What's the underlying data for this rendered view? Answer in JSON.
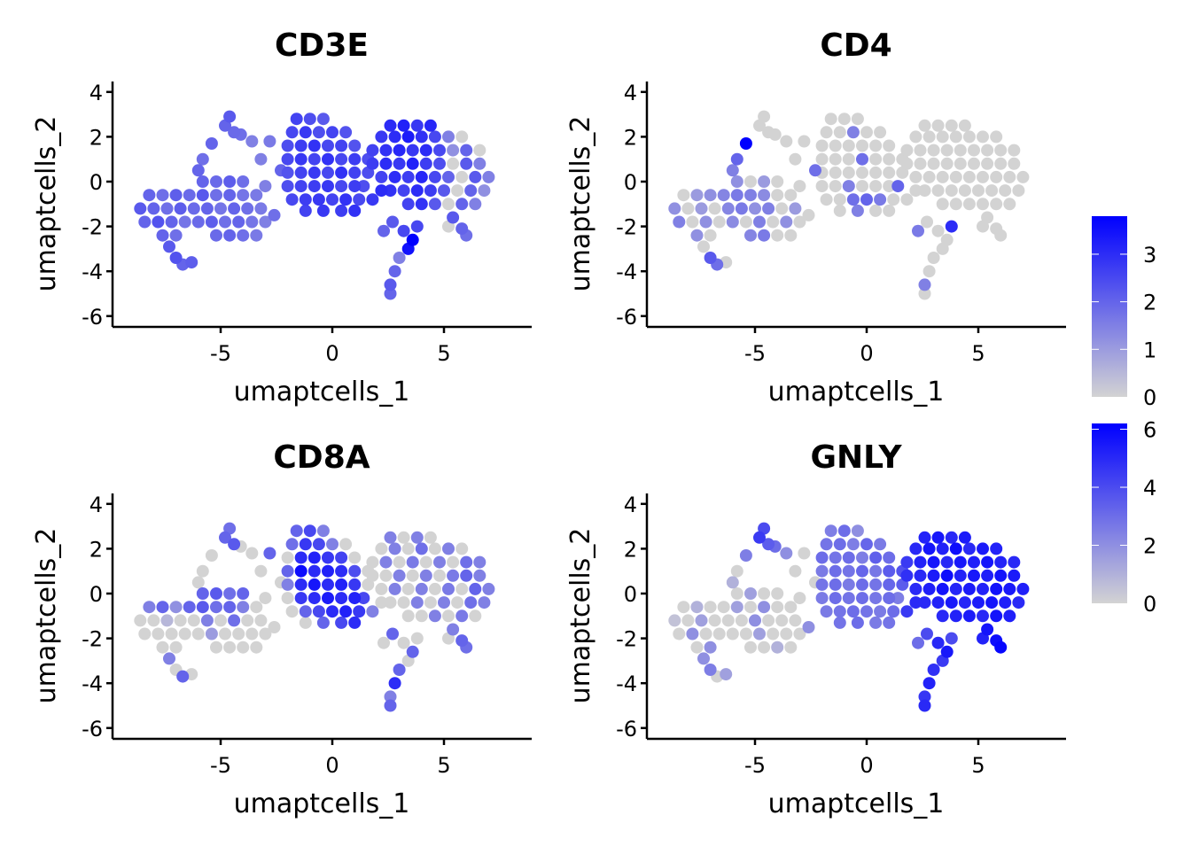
{
  "chart_data": {
    "type": "scatter",
    "xlabel": "umaptcells_1",
    "ylabel": "umaptcells_2",
    "xlim": [
      -9.8,
      8.9
    ],
    "ylim": [
      -6.5,
      4.5
    ],
    "xticks": [
      -5,
      0,
      5
    ],
    "yticks": [
      4,
      2,
      0,
      -2,
      -4,
      -6
    ],
    "grid": false,
    "color_low": "#D3D3D3",
    "color_high": "#0000FF",
    "point_columns": [
      "umaptcells_1",
      "umaptcells_2",
      "CD3E",
      "CD4",
      "CD8A",
      "GNLY"
    ],
    "panels": [
      {
        "title": "CD3E",
        "max": 3.8
      },
      {
        "title": "CD4",
        "max": 3.8
      },
      {
        "title": "CD8A",
        "max": 3.8
      },
      {
        "title": "GNLY",
        "max": 6.2
      }
    ],
    "legends": [
      {
        "ticks": [
          "0",
          "1",
          "2",
          "3"
        ],
        "tick_values": [
          0,
          1,
          2,
          3
        ],
        "max": 3.8,
        "placement": "right"
      },
      {
        "ticks": [
          "0",
          "2",
          "4",
          "6"
        ],
        "tick_values": [
          0,
          2,
          4,
          6
        ],
        "max": 6.2,
        "placement": "right"
      }
    ],
    "points": [
      [
        -8.6,
        -1.2,
        2.2,
        1.2,
        0,
        0.5
      ],
      [
        -8.0,
        -1.2,
        2.0,
        0,
        0,
        0
      ],
      [
        -7.4,
        -1.2,
        1.8,
        1.0,
        0.5,
        1.5
      ],
      [
        -6.8,
        -1.2,
        2.1,
        0,
        0,
        0
      ],
      [
        -6.2,
        -1.2,
        1.9,
        1.4,
        0,
        0
      ],
      [
        -5.6,
        -1.2,
        2.0,
        1.6,
        1.5,
        0
      ],
      [
        -5.0,
        -1.2,
        1.7,
        1.2,
        0,
        2.0
      ],
      [
        -4.4,
        -1.2,
        2.0,
        1.5,
        1.8,
        0
      ],
      [
        -3.8,
        -1.2,
        1.8,
        0,
        0,
        0
      ],
      [
        -3.2,
        -1.2,
        1.6,
        1.0,
        0,
        0
      ],
      [
        -8.4,
        -1.8,
        2.0,
        1.5,
        0,
        0
      ],
      [
        -7.8,
        -1.8,
        2.3,
        0,
        0,
        2.0
      ],
      [
        -7.2,
        -1.8,
        2.0,
        1.2,
        0,
        0
      ],
      [
        -6.6,
        -1.8,
        1.7,
        0,
        0,
        0
      ],
      [
        -6.0,
        -1.8,
        1.9,
        1.3,
        0,
        0
      ],
      [
        -5.4,
        -1.8,
        2.1,
        0,
        1.0,
        0
      ],
      [
        -4.8,
        -1.8,
        1.8,
        1.5,
        0,
        1.5
      ],
      [
        -4.2,
        -1.8,
        2.0,
        0,
        0,
        0
      ],
      [
        -3.6,
        -1.8,
        1.7,
        1.2,
        0,
        0
      ],
      [
        -3.0,
        -1.8,
        1.5,
        0,
        0,
        0
      ],
      [
        -8.2,
        -0.6,
        2.0,
        0,
        1.5,
        0
      ],
      [
        -7.6,
        -0.6,
        1.8,
        1.0,
        2.0,
        1.0
      ],
      [
        -7.0,
        -0.6,
        2.1,
        1.2,
        1.2,
        0
      ],
      [
        -6.4,
        -0.6,
        1.9,
        1.4,
        2.0,
        0
      ],
      [
        -5.8,
        -0.6,
        2.2,
        1.6,
        2.2,
        1.5
      ],
      [
        -5.2,
        -0.6,
        1.8,
        1.5,
        1.8,
        0
      ],
      [
        -4.6,
        -0.6,
        2.0,
        1.3,
        2.0,
        2.0
      ],
      [
        -4.0,
        -0.6,
        1.7,
        0,
        1.5,
        0
      ],
      [
        -3.4,
        -0.6,
        1.6,
        0,
        0,
        0
      ],
      [
        -7.6,
        -2.4,
        2.0,
        1.2,
        0,
        0
      ],
      [
        -7.0,
        -2.4,
        1.8,
        0,
        0,
        2.0
      ],
      [
        -5.2,
        -2.4,
        1.9,
        1.4,
        0,
        0
      ],
      [
        -4.6,
        -2.4,
        2.0,
        1.6,
        0,
        0
      ],
      [
        -4.0,
        -2.4,
        1.8,
        0,
        0,
        1.0
      ],
      [
        -3.4,
        -2.4,
        1.6,
        0,
        0,
        0
      ],
      [
        -5.8,
        0,
        2.0,
        1.2,
        2.0,
        0
      ],
      [
        -5.2,
        0,
        1.9,
        0,
        2.2,
        1.5
      ],
      [
        -4.6,
        0,
        2.1,
        1.0,
        1.8,
        0
      ],
      [
        -4.0,
        0,
        1.8,
        0,
        2.0,
        0
      ],
      [
        -7.3,
        -2.9,
        2.2,
        0,
        1.5,
        2.0
      ],
      [
        -7.0,
        -3.4,
        2.3,
        2.2,
        0,
        2.5
      ],
      [
        -6.7,
        -3.7,
        2.0,
        1.8,
        2.0,
        0
      ],
      [
        -6.3,
        -3.6,
        2.1,
        0,
        0,
        1.5
      ],
      [
        -4.8,
        2.5,
        2.0,
        0,
        2.0,
        4.5
      ],
      [
        -4.6,
        2.9,
        2.2,
        0,
        1.8,
        4.0
      ],
      [
        -4.4,
        2.2,
        1.9,
        0,
        2.2,
        3.5
      ],
      [
        -4.1,
        2.1,
        1.8,
        0,
        0,
        3.0
      ],
      [
        -3.6,
        1.8,
        1.5,
        0,
        0,
        2.0
      ],
      [
        -6.0,
        0.5,
        2.0,
        1.5,
        0,
        1.0
      ],
      [
        -5.8,
        1.0,
        1.8,
        2.0,
        0,
        0
      ],
      [
        -5.4,
        1.7,
        2.0,
        3.8,
        0,
        2.5
      ],
      [
        -3.2,
        1.0,
        1.5,
        0,
        0,
        0
      ],
      [
        -2.8,
        1.8,
        1.6,
        0,
        2.0,
        0
      ],
      [
        -3.0,
        -0.2,
        1.5,
        0,
        0,
        0
      ],
      [
        -2.6,
        -1.5,
        1.8,
        0,
        0,
        2.0
      ],
      [
        -2.3,
        0.5,
        2.0,
        1.8,
        0,
        0
      ],
      [
        -1.6,
        2.8,
        2.6,
        0,
        2.0,
        2.5
      ],
      [
        -1.0,
        2.8,
        2.4,
        0,
        2.5,
        3.0
      ],
      [
        -0.4,
        2.8,
        2.2,
        0,
        1.5,
        2.0
      ],
      [
        -1.8,
        2.2,
        2.5,
        0,
        1.8,
        2.8
      ],
      [
        -1.2,
        2.2,
        2.8,
        0,
        2.8,
        3.0
      ],
      [
        -0.6,
        2.2,
        2.4,
        1.5,
        2.5,
        2.5
      ],
      [
        0,
        2.2,
        2.6,
        0,
        1.5,
        3.2
      ],
      [
        0.6,
        2.2,
        2.3,
        0,
        0,
        2.6
      ],
      [
        -2.0,
        1.6,
        2.4,
        0,
        0,
        3.0
      ],
      [
        -1.4,
        1.6,
        2.7,
        0,
        3.0,
        2.8
      ],
      [
        -0.8,
        1.6,
        2.9,
        0,
        3.2,
        3.0
      ],
      [
        -0.2,
        1.6,
        2.5,
        0,
        2.8,
        2.5
      ],
      [
        0.4,
        1.6,
        2.6,
        0,
        2.6,
        3.4
      ],
      [
        1.0,
        1.6,
        2.3,
        0,
        0,
        3.0
      ],
      [
        -2.0,
        1.0,
        2.5,
        0,
        2.0,
        2.6
      ],
      [
        -1.4,
        1.0,
        2.8,
        0,
        3.6,
        3.0
      ],
      [
        -0.8,
        1.0,
        2.6,
        0,
        3.0,
        2.8
      ],
      [
        -0.2,
        1.0,
        2.9,
        1.8,
        3.2,
        3.2
      ],
      [
        0.4,
        1.0,
        2.5,
        0,
        3.0,
        2.7
      ],
      [
        1.0,
        1.0,
        2.7,
        0,
        2.4,
        3.5
      ],
      [
        1.6,
        1.0,
        2.4,
        0,
        0,
        3.8
      ],
      [
        -2.0,
        0.4,
        2.3,
        0,
        1.5,
        2.8
      ],
      [
        -1.4,
        0.4,
        2.6,
        0,
        3.0,
        3.0
      ],
      [
        -0.8,
        0.4,
        2.8,
        0,
        3.4,
        2.6
      ],
      [
        -0.2,
        0.4,
        2.5,
        0,
        3.0,
        3.0
      ],
      [
        0.4,
        0.4,
        2.9,
        0,
        3.2,
        2.8
      ],
      [
        1.0,
        0.4,
        2.6,
        0,
        2.8,
        3.2
      ],
      [
        1.6,
        0.4,
        2.4,
        0,
        0,
        3.5
      ],
      [
        -2.0,
        -0.2,
        2.4,
        0,
        0,
        2.6
      ],
      [
        -1.4,
        -0.2,
        2.6,
        0,
        2.8,
        3.0
      ],
      [
        -0.8,
        -0.2,
        2.7,
        1.5,
        3.0,
        2.8
      ],
      [
        -0.2,
        -0.2,
        2.8,
        0,
        3.3,
        3.0
      ],
      [
        0.4,
        -0.2,
        2.5,
        0,
        3.0,
        2.7
      ],
      [
        1.0,
        -0.2,
        2.7,
        0,
        3.2,
        3.0
      ],
      [
        1.4,
        -0.2,
        2.4,
        2.0,
        2.5,
        2.5
      ],
      [
        -1.8,
        -0.8,
        2.5,
        0,
        0,
        2.6
      ],
      [
        -1.2,
        -0.8,
        2.7,
        0,
        2.0,
        2.8
      ],
      [
        -0.6,
        -0.8,
        2.8,
        1.8,
        2.5,
        3.0
      ],
      [
        0,
        -0.8,
        2.6,
        2.0,
        3.0,
        2.8
      ],
      [
        0.6,
        -0.8,
        2.9,
        1.6,
        3.2,
        2.6
      ],
      [
        1.2,
        -0.8,
        2.5,
        0,
        2.8,
        3.0
      ],
      [
        -1.2,
        -1.3,
        2.6,
        0,
        0,
        2.8
      ],
      [
        -0.4,
        -1.3,
        2.8,
        1.5,
        2.0,
        3.0
      ],
      [
        0.4,
        -1.3,
        2.7,
        0,
        2.5,
        2.6
      ],
      [
        1.0,
        -1.3,
        2.9,
        0,
        3.0,
        2.8
      ],
      [
        2.6,
        2.5,
        3.0,
        0,
        1.5,
        5.2
      ],
      [
        3.2,
        2.5,
        3.2,
        0,
        0,
        5.5
      ],
      [
        3.8,
        2.5,
        2.8,
        0,
        1.5,
        5.0
      ],
      [
        4.4,
        2.5,
        3.1,
        0,
        0,
        5.4
      ],
      [
        2.2,
        2.0,
        2.8,
        0,
        0,
        5.0
      ],
      [
        2.8,
        2.0,
        3.0,
        0,
        1.5,
        5.6
      ],
      [
        3.4,
        2.0,
        3.3,
        0,
        0,
        5.2
      ],
      [
        4.0,
        2.0,
        2.9,
        0,
        1.8,
        5.8
      ],
      [
        4.6,
        2.0,
        2.5,
        0,
        0,
        5.0
      ],
      [
        5.2,
        2.0,
        1.5,
        0,
        1.5,
        5.4
      ],
      [
        5.8,
        2.0,
        0,
        0,
        0,
        5.2
      ],
      [
        1.8,
        1.4,
        2.6,
        0,
        0,
        4.5
      ],
      [
        2.4,
        1.4,
        2.9,
        0,
        1.5,
        5.2
      ],
      [
        3.0,
        1.4,
        3.1,
        0,
        0,
        5.6
      ],
      [
        3.6,
        1.4,
        2.8,
        0,
        1.6,
        5.0
      ],
      [
        4.2,
        1.4,
        3.0,
        0,
        0,
        5.5
      ],
      [
        4.8,
        1.4,
        2.5,
        0,
        1.5,
        5.3
      ],
      [
        5.4,
        1.4,
        1.2,
        0,
        0,
        5.6
      ],
      [
        6.0,
        1.4,
        2.0,
        0,
        1.8,
        5.2
      ],
      [
        6.6,
        1.4,
        0,
        0,
        1.5,
        5.0
      ],
      [
        1.8,
        0.8,
        2.7,
        0,
        0,
        4.8
      ],
      [
        2.4,
        0.8,
        3.0,
        0,
        0,
        5.0
      ],
      [
        3.0,
        0.8,
        2.8,
        0,
        1.5,
        5.4
      ],
      [
        3.6,
        0.8,
        3.2,
        0,
        0,
        5.8
      ],
      [
        4.2,
        0.8,
        2.7,
        0,
        1.5,
        5.2
      ],
      [
        4.8,
        0.8,
        2.4,
        0,
        0,
        5.5
      ],
      [
        5.4,
        0.8,
        0,
        0,
        1.6,
        5.3
      ],
      [
        6.0,
        0.8,
        2.2,
        0,
        2.0,
        5.6
      ],
      [
        6.6,
        0.8,
        1.5,
        0,
        1.5,
        5.4
      ],
      [
        2.2,
        0.2,
        2.6,
        0,
        0,
        5.0
      ],
      [
        2.8,
        0.2,
        3.0,
        0,
        1.5,
        5.3
      ],
      [
        3.4,
        0.2,
        2.7,
        0,
        0,
        5.6
      ],
      [
        4.0,
        0.2,
        3.1,
        0,
        1.5,
        5.1
      ],
      [
        4.6,
        0.2,
        2.5,
        0,
        0,
        5.4
      ],
      [
        5.2,
        0.2,
        2.0,
        0,
        1.6,
        5.2
      ],
      [
        5.8,
        0.2,
        0,
        0,
        0,
        5.7
      ],
      [
        6.4,
        0.2,
        2.2,
        0,
        2.0,
        5.5
      ],
      [
        7.0,
        0.2,
        1.5,
        0,
        1.5,
        5.3
      ],
      [
        2.6,
        -0.4,
        2.9,
        0,
        0,
        5.0
      ],
      [
        3.2,
        -0.4,
        2.6,
        0,
        0,
        5.2
      ],
      [
        3.8,
        -0.4,
        3.0,
        0,
        1.5,
        5.5
      ],
      [
        4.4,
        -0.4,
        2.7,
        0,
        0,
        5.1
      ],
      [
        5.0,
        -0.4,
        2.2,
        0,
        1.5,
        5.4
      ],
      [
        5.6,
        -0.4,
        0,
        0,
        0,
        5.6
      ],
      [
        6.2,
        -0.4,
        2.0,
        0,
        1.8,
        5.3
      ],
      [
        6.8,
        -0.4,
        1.2,
        0,
        1.5,
        5.0
      ],
      [
        3.4,
        -1.0,
        2.6,
        0,
        0,
        5.0
      ],
      [
        4.0,
        -1.0,
        2.9,
        0,
        0,
        5.2
      ],
      [
        4.6,
        -1.0,
        2.2,
        0,
        1.5,
        5.4
      ],
      [
        5.2,
        -1.0,
        0,
        0,
        0,
        5.0
      ],
      [
        5.8,
        -1.0,
        2.0,
        0,
        1.6,
        5.6
      ],
      [
        6.4,
        -1.0,
        1.5,
        0,
        0,
        5.3
      ],
      [
        5.4,
        -1.6,
        2.2,
        0,
        1.5,
        5.6
      ],
      [
        5.8,
        -2.1,
        2.0,
        0,
        2.0,
        5.8
      ],
      [
        6.0,
        -2.4,
        1.8,
        0,
        1.8,
        6.0
      ],
      [
        5.2,
        -2.0,
        0,
        0,
        0,
        5.2
      ],
      [
        1.8,
        -0.8,
        2.8,
        0,
        1.5,
        4.5
      ],
      [
        2.2,
        -0.4,
        3.0,
        0,
        0,
        5.0
      ],
      [
        2.3,
        -2.2,
        2.0,
        1.6,
        0,
        3.0
      ],
      [
        2.7,
        -1.8,
        2.2,
        0,
        2.0,
        4.0
      ],
      [
        3.2,
        -2.2,
        2.5,
        0,
        0,
        5.0
      ],
      [
        3.6,
        -2.6,
        3.8,
        0,
        2.0,
        5.5
      ],
      [
        3.4,
        -3.0,
        3.5,
        0,
        0,
        4.5
      ],
      [
        3.0,
        -3.4,
        1.5,
        0,
        2.0,
        4.8
      ],
      [
        2.8,
        -4.0,
        2.0,
        0,
        3.0,
        5.2
      ],
      [
        2.6,
        -4.6,
        2.2,
        1.5,
        1.5,
        4.6
      ],
      [
        2.6,
        -5.0,
        2.0,
        0,
        2.0,
        5.0
      ],
      [
        3.8,
        -2.0,
        2.5,
        3.0,
        0,
        4.0
      ]
    ]
  }
}
